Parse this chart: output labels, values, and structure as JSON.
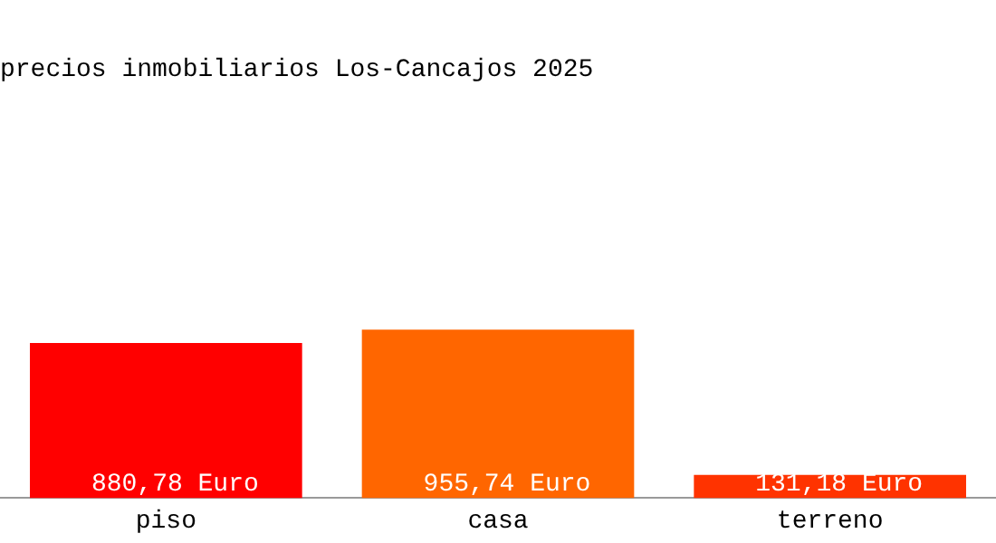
{
  "chart_data": {
    "type": "bar",
    "title": "precios inmobiliarios Los-Cancajos 2025",
    "categories": [
      "piso",
      "casa",
      "terreno"
    ],
    "values": [
      880.78,
      955.74,
      131.18
    ],
    "colors": [
      "#ff0000",
      "#ff6600",
      "#ff3300"
    ],
    "value_labels": [
      "880,78 Euro",
      "955,74 Euro",
      "131,18 Euro"
    ],
    "grid": false,
    "legend": false
  }
}
